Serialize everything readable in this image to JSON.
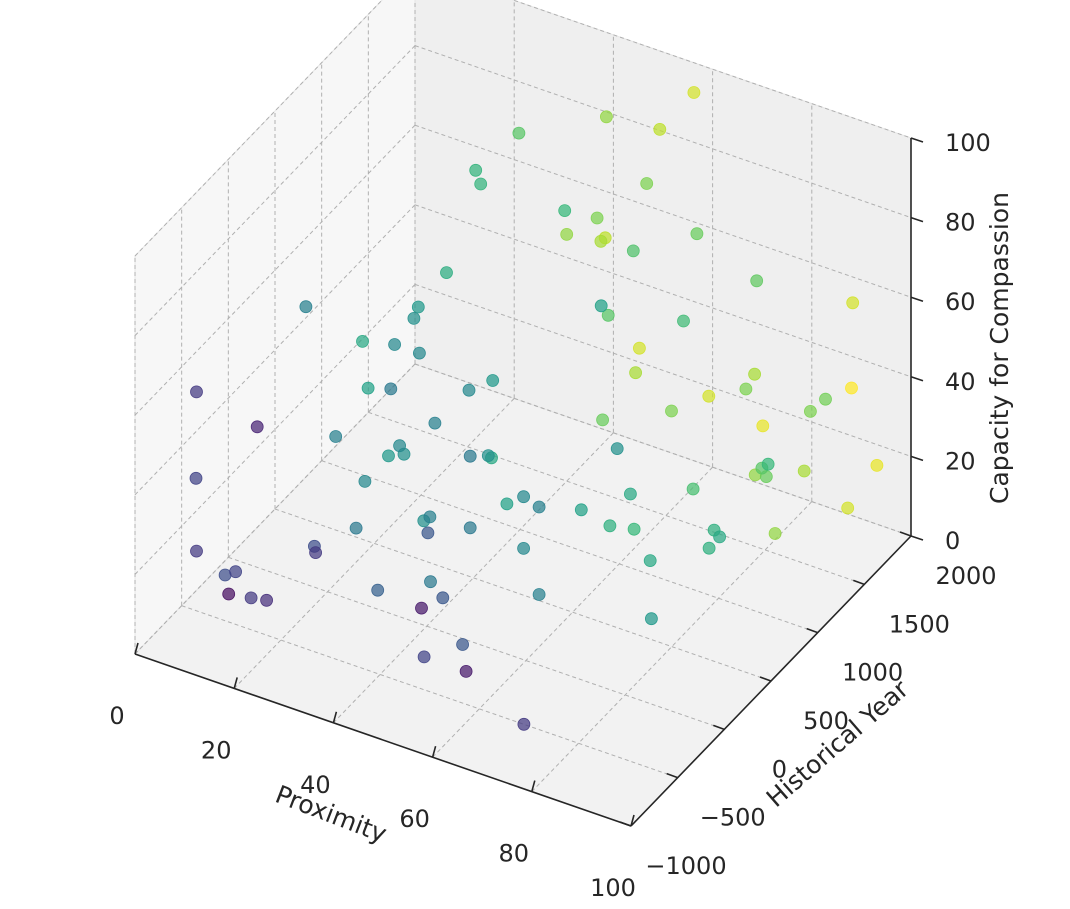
{
  "chart_data": {
    "type": "scatter3d",
    "title": "",
    "xlabel": "Proximity",
    "ylabel": "Historical Year",
    "zlabel": "Capacity for Compassion",
    "xlim": [
      0,
      100
    ],
    "ylim": [
      -1000,
      2000
    ],
    "zlim": [
      0,
      100
    ],
    "xticks": [
      "0",
      "20",
      "40",
      "60",
      "80",
      "100"
    ],
    "yticks": [
      "−1000",
      "−500",
      "0",
      "500",
      "1000",
      "1500",
      "2000"
    ],
    "zticks": [
      "0",
      "20",
      "40",
      "60",
      "80",
      "100"
    ],
    "grid": true,
    "colormap": "viridis",
    "color_by": "Historical Year",
    "points": [
      {
        "x": 60,
        "y": 1800,
        "z": 99
      },
      {
        "x": 48,
        "y": 1500,
        "z": 95
      },
      {
        "x": 55,
        "y": 1700,
        "z": 90
      },
      {
        "x": 36,
        "y": 1200,
        "z": 93
      },
      {
        "x": 70,
        "y": 1300,
        "z": 80
      },
      {
        "x": 58,
        "y": 1400,
        "z": 85
      },
      {
        "x": 32,
        "y": 950,
        "z": 88
      },
      {
        "x": 33,
        "y": 950,
        "z": 85
      },
      {
        "x": 49,
        "y": 1000,
        "z": 84
      },
      {
        "x": 83,
        "y": 1250,
        "z": 75
      },
      {
        "x": 60,
        "y": 1150,
        "z": 75
      },
      {
        "x": 62,
        "y": 700,
        "z": 73
      },
      {
        "x": 48,
        "y": 1400,
        "z": 72
      },
      {
        "x": 72,
        "y": 1050,
        "z": 65
      },
      {
        "x": 92,
        "y": 1800,
        "z": 60
      },
      {
        "x": 95,
        "y": 1350,
        "z": 48
      },
      {
        "x": 40,
        "y": 1500,
        "z": 62
      },
      {
        "x": 45,
        "y": 1600,
        "z": 60
      },
      {
        "x": 44,
        "y": 1700,
        "z": 58
      },
      {
        "x": 54,
        "y": 1200,
        "z": 55
      },
      {
        "x": 28,
        "y": 850,
        "z": 63
      },
      {
        "x": 26,
        "y": 400,
        "z": 55
      },
      {
        "x": 27,
        "y": 600,
        "z": 60
      },
      {
        "x": 28,
        "y": 500,
        "z": 60
      },
      {
        "x": 31,
        "y": 400,
        "z": 55
      },
      {
        "x": 10,
        "y": 300,
        "z": 60
      },
      {
        "x": 19,
        "y": -700,
        "z": 58
      },
      {
        "x": 29,
        "y": 200,
        "z": 50
      },
      {
        "x": 36,
        "y": 300,
        "z": 42
      },
      {
        "x": 3,
        "y": -500,
        "z": 55
      },
      {
        "x": 41,
        "y": 400,
        "z": 50
      },
      {
        "x": 42,
        "y": 600,
        "z": 48
      },
      {
        "x": 45,
        "y": 200,
        "z": 40
      },
      {
        "x": 69,
        "y": 500,
        "z": 45
      },
      {
        "x": 76,
        "y": 1600,
        "z": 40
      },
      {
        "x": 78,
        "y": 1400,
        "z": 42
      },
      {
        "x": 91,
        "y": 1400,
        "z": 42
      },
      {
        "x": 90,
        "y": 1000,
        "z": 38
      },
      {
        "x": 85,
        "y": 1200,
        "z": 30
      },
      {
        "x": 88,
        "y": 2000,
        "z": 32
      },
      {
        "x": 95,
        "y": 1900,
        "z": 18
      },
      {
        "x": 73,
        "y": 1100,
        "z": 22
      },
      {
        "x": 81,
        "y": 900,
        "z": 20
      },
      {
        "x": 84,
        "y": 800,
        "z": 22
      },
      {
        "x": 86,
        "y": 1600,
        "z": 20
      },
      {
        "x": 84,
        "y": 1300,
        "z": 25
      },
      {
        "x": 72,
        "y": 1900,
        "z": 18
      },
      {
        "x": 80,
        "y": 900,
        "z": 15
      },
      {
        "x": 66,
        "y": 800,
        "z": 25
      },
      {
        "x": 63,
        "y": 1400,
        "z": 30
      },
      {
        "x": 63,
        "y": 1800,
        "z": 24
      },
      {
        "x": 63,
        "y": -800,
        "z": 18
      },
      {
        "x": 52,
        "y": 1600,
        "z": 30
      },
      {
        "x": 57,
        "y": 300,
        "z": 30
      },
      {
        "x": 54,
        "y": -800,
        "z": 30
      },
      {
        "x": 52,
        "y": 400,
        "z": 28
      },
      {
        "x": 49,
        "y": 1800,
        "z": 30
      },
      {
        "x": 43,
        "y": 500,
        "z": 32
      },
      {
        "x": 44,
        "y": -200,
        "z": 30
      },
      {
        "x": 51,
        "y": 1300,
        "z": 25
      },
      {
        "x": 45,
        "y": 200,
        "z": 22
      },
      {
        "x": 38,
        "y": 800,
        "z": 22
      },
      {
        "x": 35,
        "y": 300,
        "z": 18
      },
      {
        "x": 27,
        "y": 400,
        "z": 30
      },
      {
        "x": 27,
        "y": -500,
        "z": 25
      },
      {
        "x": 26,
        "y": 500,
        "z": 25
      },
      {
        "x": 21,
        "y": 600,
        "z": 20
      },
      {
        "x": 23,
        "y": -300,
        "z": 20
      },
      {
        "x": 20,
        "y": 400,
        "z": 18
      },
      {
        "x": 1,
        "y": -400,
        "z": 30
      },
      {
        "x": 3,
        "y": -500,
        "z": 15
      },
      {
        "x": 12,
        "y": 800,
        "z": 40
      },
      {
        "x": 15,
        "y": 700,
        "z": 32
      },
      {
        "x": 16,
        "y": 300,
        "z": 30
      },
      {
        "x": 17,
        "y": -900,
        "z": 20
      },
      {
        "x": 19,
        "y": -600,
        "z": 12
      },
      {
        "x": 22,
        "y": 200,
        "z": 12
      },
      {
        "x": 9,
        "y": -400,
        "z": 10
      },
      {
        "x": 5,
        "y": -300,
        "z": 5
      },
      {
        "x": 30,
        "y": 500,
        "z": 10
      },
      {
        "x": 43,
        "y": 700,
        "z": 15
      },
      {
        "x": 47,
        "y": -200,
        "z": 15
      },
      {
        "x": 52,
        "y": 400,
        "z": 15
      },
      {
        "x": 58,
        "y": 700,
        "z": 20
      },
      {
        "x": 60,
        "y": 900,
        "z": 12
      },
      {
        "x": 63,
        "y": 1000,
        "z": 10
      },
      {
        "x": 70,
        "y": 800,
        "z": 10
      },
      {
        "x": 78,
        "y": 1500,
        "z": 18
      },
      {
        "x": 82,
        "y": 1500,
        "z": 5
      },
      {
        "x": 91,
        "y": 1800,
        "z": 8
      },
      {
        "x": 74,
        "y": 600,
        "z": 2
      },
      {
        "x": 47,
        "y": -400,
        "z": 5
      },
      {
        "x": 51,
        "y": -200,
        "z": 5
      },
      {
        "x": 37,
        "y": 200,
        "z": 5
      },
      {
        "x": 69,
        "y": -500,
        "z": 0
      },
      {
        "x": 14,
        "y": -500,
        "z": 8
      },
      {
        "x": 32,
        "y": -100,
        "z": 8
      },
      {
        "x": 57,
        "y": 300,
        "z": 8
      }
    ]
  }
}
